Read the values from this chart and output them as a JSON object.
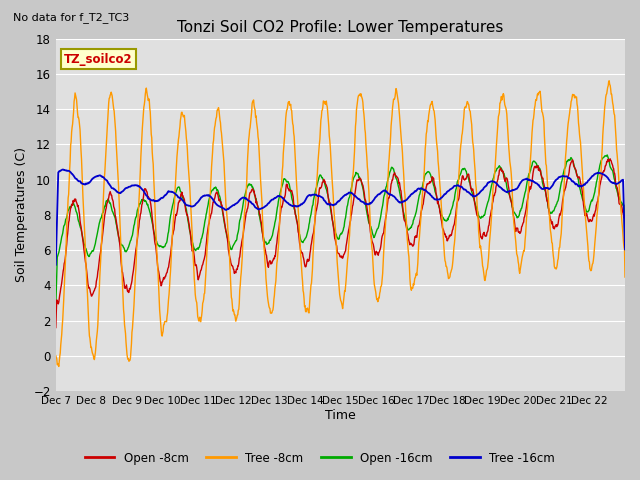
{
  "title": "Tonzi Soil CO2 Profile: Lower Temperatures",
  "subtitle": "No data for f_T2_TC3",
  "ylabel": "Soil Temperatures (C)",
  "xlabel": "Time",
  "box_label": "TZ_soilco2",
  "ylim": [
    -2,
    18
  ],
  "yticks": [
    -2,
    0,
    2,
    4,
    6,
    8,
    10,
    12,
    14,
    16,
    18
  ],
  "n_days": 16,
  "xtick_positions": [
    0,
    1,
    2,
    3,
    4,
    5,
    6,
    7,
    8,
    9,
    10,
    11,
    12,
    13,
    14,
    15,
    16
  ],
  "xtick_labels": [
    "Dec 7",
    "Dec 8",
    "Dec 9",
    "Dec 10",
    "Dec 11",
    "Dec 12",
    "Dec 13",
    "Dec 14",
    "Dec 15",
    "Dec 16",
    "Dec 17",
    "Dec 18",
    "Dec 19",
    "Dec 20",
    "Dec 21",
    "Dec 22",
    ""
  ],
  "colors": {
    "open_8cm": "#cc0000",
    "tree_8cm": "#ff9900",
    "open_16cm": "#00aa00",
    "tree_16cm": "#0000cc"
  },
  "legend_items": [
    "Open -8cm",
    "Tree -8cm",
    "Open -16cm",
    "Tree -16cm"
  ],
  "bg_color": "#e0e0e0",
  "fig_bg_color": "#c8c8c8",
  "grid_color": "#ffffff"
}
